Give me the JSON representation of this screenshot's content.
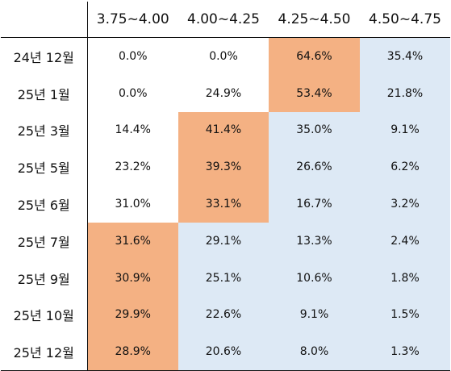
{
  "table": {
    "columns": [
      "3.75~4.00",
      "4.00~4.25",
      "4.25~4.50",
      "4.50~4.75"
    ],
    "colors": {
      "white": "#ffffff",
      "orange": "#f4b183",
      "blue": "#dde9f5"
    },
    "rows": [
      {
        "label": "24년 12월",
        "values": [
          "0.0%",
          "0.0%",
          "64.6%",
          "35.4%"
        ],
        "fills": [
          "white",
          "white",
          "orange",
          "blue"
        ]
      },
      {
        "label": "25년 1월",
        "values": [
          "0.0%",
          "24.9%",
          "53.4%",
          "21.8%"
        ],
        "fills": [
          "white",
          "white",
          "orange",
          "blue"
        ]
      },
      {
        "label": "25년 3월",
        "values": [
          "14.4%",
          "41.4%",
          "35.0%",
          "9.1%"
        ],
        "fills": [
          "white",
          "orange",
          "blue",
          "blue"
        ]
      },
      {
        "label": "25년 5월",
        "values": [
          "23.2%",
          "39.3%",
          "26.6%",
          "6.2%"
        ],
        "fills": [
          "white",
          "orange",
          "blue",
          "blue"
        ]
      },
      {
        "label": "25년 6월",
        "values": [
          "31.0%",
          "33.1%",
          "16.7%",
          "3.2%"
        ],
        "fills": [
          "white",
          "orange",
          "blue",
          "blue"
        ]
      },
      {
        "label": "25년 7월",
        "values": [
          "31.6%",
          "29.1%",
          "13.3%",
          "2.4%"
        ],
        "fills": [
          "orange",
          "blue",
          "blue",
          "blue"
        ]
      },
      {
        "label": "25년 9월",
        "values": [
          "30.9%",
          "25.1%",
          "10.6%",
          "1.8%"
        ],
        "fills": [
          "orange",
          "blue",
          "blue",
          "blue"
        ]
      },
      {
        "label": "25년 10월",
        "values": [
          "29.9%",
          "22.6%",
          "9.1%",
          "1.5%"
        ],
        "fills": [
          "orange",
          "blue",
          "blue",
          "blue"
        ]
      },
      {
        "label": "25년 12월",
        "values": [
          "28.9%",
          "20.6%",
          "8.0%",
          "1.3%"
        ],
        "fills": [
          "orange",
          "blue",
          "blue",
          "blue"
        ]
      }
    ]
  }
}
